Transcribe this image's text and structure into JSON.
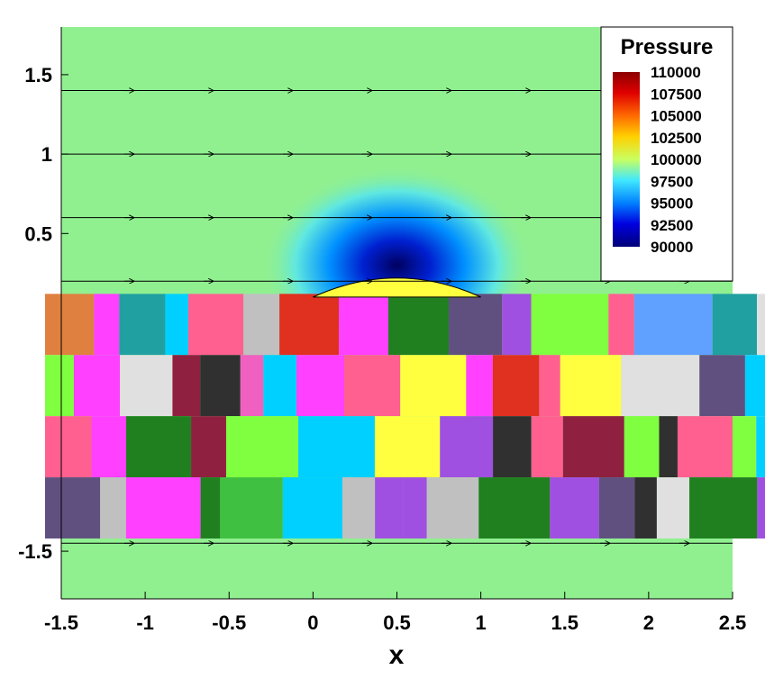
{
  "chart_data": {
    "type": "heatmap",
    "variable": "Pressure",
    "xlabel": "x",
    "ylabel": "",
    "xlim": [
      -1.5,
      2.5
    ],
    "ylim": [
      -1.8,
      1.8
    ],
    "x_ticks": [
      -1.5,
      -1,
      -0.5,
      0,
      0.5,
      1,
      1.5,
      2,
      2.5
    ],
    "x_tick_labels": [
      "-1.5",
      "-1",
      "-0.5",
      "0",
      "0.5",
      "1",
      "1.5",
      "2",
      "2.5"
    ],
    "y_ticks": [
      1.5,
      1,
      0.5,
      -1.5
    ],
    "y_tick_labels": [
      "1.5",
      "1",
      "0.5",
      "-1.5"
    ],
    "legend": {
      "title": "Pressure",
      "placement": "top-right",
      "levels": [
        110000,
        107500,
        105000,
        102500,
        100000,
        97500,
        95000,
        92500,
        90000
      ],
      "labels": [
        "110000",
        "107500",
        "105000",
        "102500",
        "100000",
        "97500",
        "95000",
        "92500",
        "90000"
      ],
      "colors": [
        "#8b0000",
        "#e00000",
        "#ff6a00",
        "#ffd000",
        "#c8ff60",
        "#40e8ff",
        "#0080ff",
        "#0000e0",
        "#000078"
      ]
    },
    "background_color": "#90f090",
    "streamlines_y": [
      1.4,
      1.0,
      0.6,
      0.2,
      -1.45
    ],
    "bump": {
      "x_start": 0.0,
      "x_end": 1.0,
      "height": 0.12,
      "y_base": 0.1
    },
    "low_pressure_center": {
      "x": 0.5,
      "y": 0.3
    },
    "artifact_band_ylim": [
      -1.42,
      0.12
    ]
  }
}
